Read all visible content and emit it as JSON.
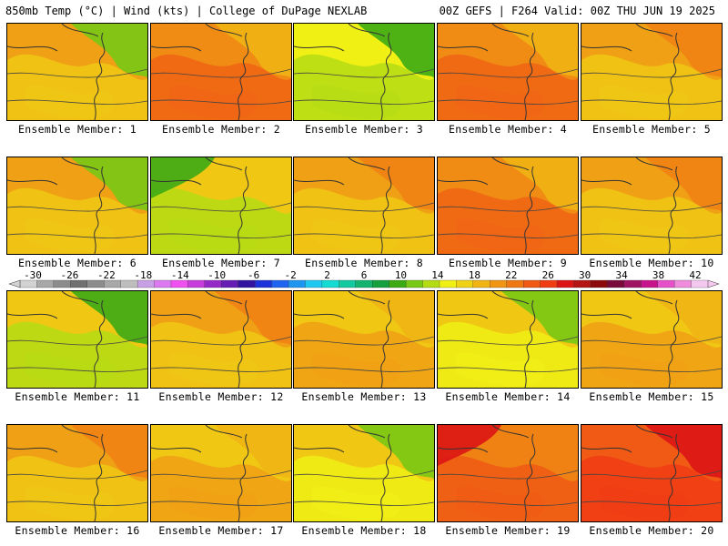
{
  "header": {
    "left": "850mb Temp (°C) | Wind (kts) | College of DuPage NEXLAB",
    "right": "00Z GEFS | F264 Valid: 00Z THU JUN 19 2025"
  },
  "panels": [
    {
      "label": "Ensemble Member: 1",
      "scheme": "warm-green-ne"
    },
    {
      "label": "Ensemble Member: 2",
      "scheme": "hot-orange"
    },
    {
      "label": "Ensemble Member: 3",
      "scheme": "cool-green-yellow"
    },
    {
      "label": "Ensemble Member: 4",
      "scheme": "hot-orange"
    },
    {
      "label": "Ensemble Member: 5",
      "scheme": "orange-yellow"
    },
    {
      "label": "Ensemble Member: 6",
      "scheme": "warm-green-ne"
    },
    {
      "label": "Ensemble Member: 7",
      "scheme": "cool-green-nw"
    },
    {
      "label": "Ensemble Member: 8",
      "scheme": "orange-yellow"
    },
    {
      "label": "Ensemble Member: 9",
      "scheme": "hot-orange"
    },
    {
      "label": "Ensemble Member: 10",
      "scheme": "orange-yellow"
    },
    {
      "label": "Ensemble Member: 11",
      "scheme": "cool-green-ne"
    },
    {
      "label": "Ensemble Member: 12",
      "scheme": "orange-yellow"
    },
    {
      "label": "Ensemble Member: 13",
      "scheme": "yellow-orange"
    },
    {
      "label": "Ensemble Member: 14",
      "scheme": "yellow-green-ne"
    },
    {
      "label": "Ensemble Member: 15",
      "scheme": "yellow-orange"
    },
    {
      "label": "Ensemble Member: 16",
      "scheme": "orange-yellow"
    },
    {
      "label": "Ensemble Member: 17",
      "scheme": "yellow-orange"
    },
    {
      "label": "Ensemble Member: 18",
      "scheme": "yellow-green-ne"
    },
    {
      "label": "Ensemble Member: 19",
      "scheme": "hot-red-nw"
    },
    {
      "label": "Ensemble Member: 20",
      "scheme": "hot-red-ne"
    }
  ],
  "colorbar": {
    "labels": [
      "-30",
      "-26",
      "-22",
      "-18",
      "-14",
      "-10",
      "-6",
      "-2",
      "2",
      "6",
      "10",
      "14",
      "18",
      "22",
      "26",
      "30",
      "34",
      "38",
      "42"
    ],
    "colors": [
      "#d2d2d2",
      "#a8a8a8",
      "#8c8c8c",
      "#707070",
      "#8c8c8c",
      "#a8a8a8",
      "#bebebe",
      "#c8a0e6",
      "#dc78f0",
      "#f050f0",
      "#c83cdc",
      "#9628c8",
      "#641eb4",
      "#3214a0",
      "#1e32dc",
      "#1e64f0",
      "#1e96f0",
      "#1ec8f0",
      "#14dcd2",
      "#14c8a0",
      "#14b46e",
      "#14a03c",
      "#3caa14",
      "#78c814",
      "#b4dc14",
      "#f0f014",
      "#f0d214",
      "#f0b414",
      "#f09614",
      "#f07814",
      "#f05a14",
      "#f03c14",
      "#dc1414",
      "#b41414",
      "#8c0a0a",
      "#780a3c",
      "#a01464",
      "#c8148c",
      "#e650c8",
      "#f08cdc",
      "#f5c8f0"
    ]
  }
}
